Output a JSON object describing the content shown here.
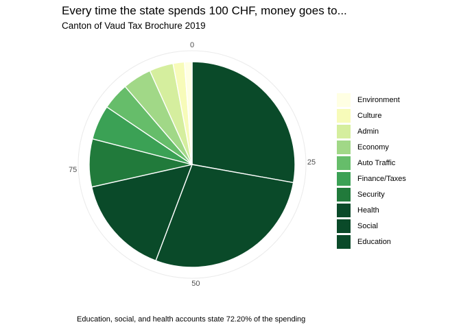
{
  "chart_data": {
    "type": "pie",
    "title": "Every time the state spends 100 CHF, money goes to...",
    "subtitle": "Canton of Vaud Tax Brochure 2019",
    "caption": "Education, social, and health accounts state 72.20% of the spending",
    "categories": [
      "Education",
      "Social",
      "Health",
      "Security",
      "Finance/Taxes",
      "Auto Traffic",
      "Economy",
      "Admin",
      "Culture",
      "Environment"
    ],
    "values": [
      28.1,
      28.2,
      15.9,
      7.6,
      5.5,
      4.3,
      4.6,
      3.8,
      1.8,
      1.2
    ],
    "colors": [
      "#0a4a29",
      "#0a4a29",
      "#0a4a29",
      "#217a3b",
      "#3ba155",
      "#66bd6a",
      "#a1d887",
      "#d5ee9e",
      "#f7fbb9",
      "#ffffe3"
    ],
    "axis_ticks": [
      "0",
      "25",
      "50",
      "75"
    ],
    "legend_position": "right",
    "direction": "clockwise from top"
  }
}
